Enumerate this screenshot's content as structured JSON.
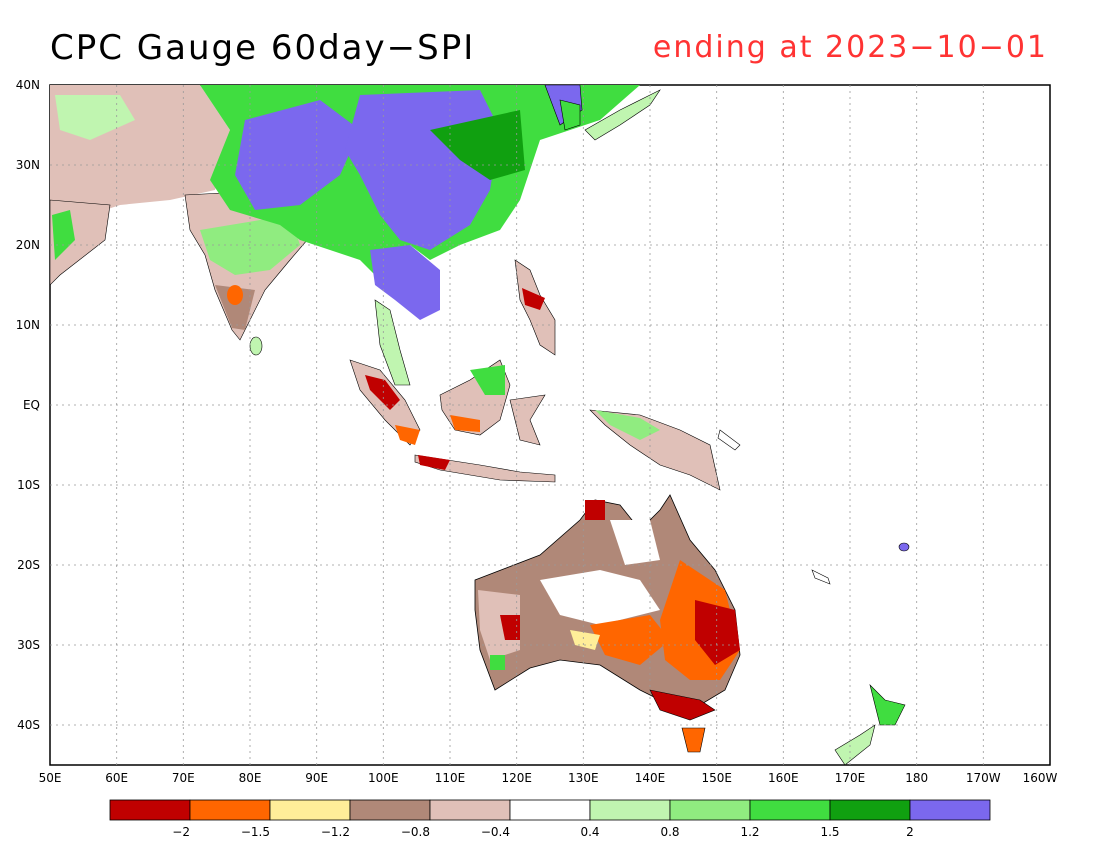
{
  "title": "CPC Gauge 60day−SPI",
  "subtitle": "ending at 2023−10−01",
  "lat_labels": [
    "40N",
    "30N",
    "20N",
    "10N",
    "EQ",
    "10S",
    "20S",
    "30S",
    "40S"
  ],
  "lon_labels": [
    "50E",
    "60E",
    "70E",
    "80E",
    "90E",
    "100E",
    "110E",
    "120E",
    "130E",
    "140E",
    "150E",
    "160E",
    "170E",
    "180",
    "170W",
    "160W"
  ],
  "legend": {
    "colors": [
      "#c00000",
      "#ff6600",
      "#ffee99",
      "#b08878",
      "#e0c0b8",
      "#ffffff",
      "#c0f5b0",
      "#90ec80",
      "#40dd40",
      "#10a010",
      "#7b68ee"
    ],
    "labels": [
      "−2",
      "−1.5",
      "−1.2",
      "−0.8",
      "−0.4",
      "0.4",
      "0.8",
      "1.2",
      "1.5",
      "2"
    ]
  },
  "map": {
    "extent": {
      "lon": [
        50,
        200
      ],
      "lat": [
        -45,
        40
      ]
    },
    "category_colors": {
      "very_dry": "#c00000",
      "dry": "#ff6600",
      "mod_dry": "#ffee99",
      "brown": "#b08878",
      "tan": "#e0c0b8",
      "normal": "#ffffff",
      "lt_green": "#c0f5b0",
      "green": "#90ec80",
      "med_green": "#40dd40",
      "dk_green": "#10a010",
      "very_wet": "#7b68ee"
    }
  }
}
